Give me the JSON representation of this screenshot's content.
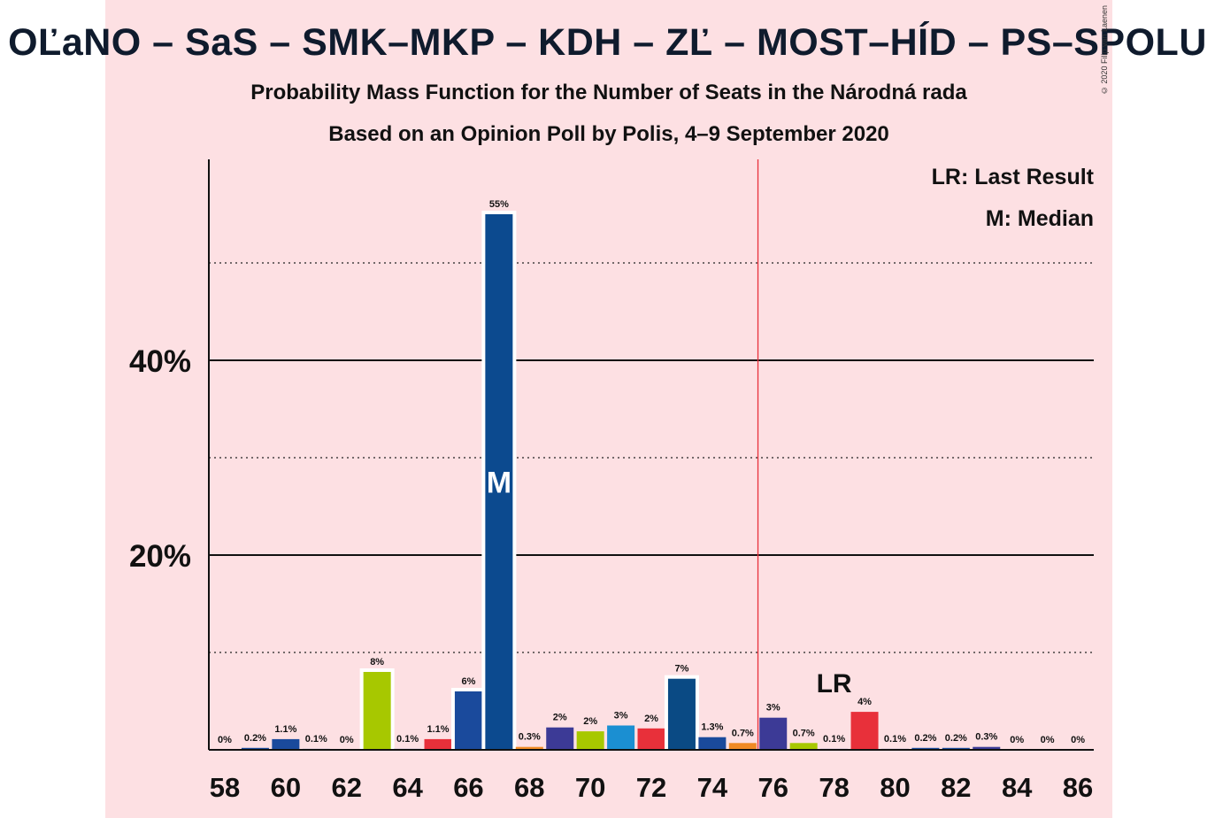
{
  "title": "OĽaNO – SaS – SMK–MKP – KDH – ZĽ – MOST–HÍD – PS–SPOLU",
  "subtitle1": "Probability Mass Function for the Number of Seats in the Národná rada",
  "subtitle2": "Based on an Opinion Poll by Polis, 4–9 September 2020",
  "copyright": "© 2020 Filip van Laenen",
  "legend": {
    "last_result": "LR: Last Result",
    "median": "M: Median"
  },
  "colors": {
    "background": "#fde0e3",
    "majority_line": "#e8303a"
  },
  "chart_data": {
    "type": "bar",
    "x": [
      58,
      59,
      60,
      61,
      62,
      63,
      64,
      65,
      66,
      67,
      68,
      69,
      70,
      71,
      72,
      73,
      74,
      75,
      76,
      77,
      78,
      79,
      80,
      81,
      82,
      83,
      84,
      85,
      86
    ],
    "values": [
      0,
      0.2,
      1.1,
      0.1,
      0,
      8,
      0.1,
      1.1,
      6,
      55,
      0.3,
      2.3,
      1.9,
      2.5,
      2.2,
      7.3,
      1.3,
      0.7,
      3.3,
      0.7,
      0.1,
      3.9,
      0.1,
      0.2,
      0.2,
      0.3,
      0,
      0,
      0
    ],
    "value_labels": [
      "0%",
      "0.2%",
      "1.1%",
      "0.1%",
      "0%",
      "8%",
      "0.1%",
      "1.1%",
      "6%",
      "55%",
      "0.3%",
      "2%",
      "2%",
      "3%",
      "2%",
      "7%",
      "1.3%",
      "0.7%",
      "3%",
      "0.7%",
      "0.1%",
      "4%",
      "0.1%",
      "0.2%",
      "0.2%",
      "0.3%",
      "0%",
      "0%",
      "0%"
    ],
    "bar_colors": [
      "#1a4a9c",
      "#1a4a9c",
      "#1a4a9c",
      "#1a4a9c",
      "#1a4a9c",
      "#a7c800",
      "#1a4a9c",
      "#e8303a",
      "#1a4a9c",
      "#0c4a8f",
      "#f08a24",
      "#3c3a96",
      "#a7c800",
      "#1b8fd2",
      "#e8303a",
      "#0a4a84",
      "#1a4a9c",
      "#f08a24",
      "#3c3a96",
      "#a7c800",
      "#1a4a9c",
      "#e8303a",
      "#1a4a9c",
      "#1a4a9c",
      "#1a4a9c",
      "#3c3a96",
      "#1a4a9c",
      "#1a4a9c",
      "#1a4a9c"
    ],
    "x_tick_labels": [
      "58",
      "60",
      "62",
      "64",
      "66",
      "68",
      "70",
      "72",
      "74",
      "76",
      "78",
      "80",
      "82",
      "84",
      "86"
    ],
    "y_tick_labels": [
      "20%",
      "40%"
    ],
    "ylim": [
      0,
      60
    ],
    "major_gridlines": [
      20,
      40
    ],
    "minor_gridlines": [
      10,
      30,
      50
    ],
    "majority_threshold": 75.5,
    "median_seat": 67,
    "median_label": "M",
    "last_result_seat": 78,
    "last_result_label": "LR"
  }
}
